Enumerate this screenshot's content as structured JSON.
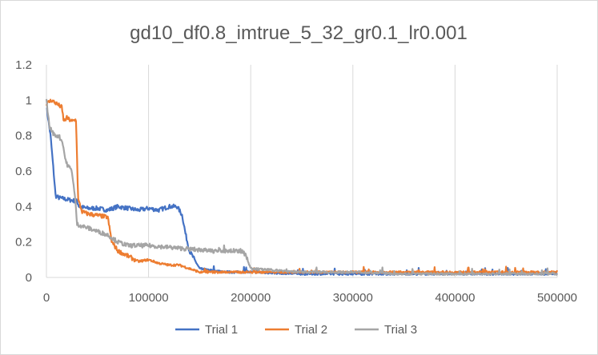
{
  "chart_data": {
    "type": "line",
    "title": "gd10_df0.8_imtrue_5_32_gr0.1_lr0.001",
    "xlabel": "",
    "ylabel": "",
    "xlim": [
      0,
      500000
    ],
    "ylim": [
      0,
      1.2
    ],
    "x_ticks": [
      0,
      100000,
      200000,
      300000,
      400000,
      500000
    ],
    "y_ticks": [
      0,
      0.2,
      0.4,
      0.6,
      0.8,
      1,
      1.2
    ],
    "x_tick_labels": [
      "0",
      "100000",
      "200000",
      "300000",
      "400000",
      "500000"
    ],
    "y_tick_labels": [
      "0",
      "0.2",
      "0.4",
      "0.6",
      "0.8",
      "1",
      "1.2"
    ],
    "grid": "vertical",
    "legend_position": "bottom",
    "series": [
      {
        "name": "Trial 1",
        "color": "#4472C4",
        "x": [
          0,
          4000,
          7000,
          9000,
          12000,
          20000,
          30000,
          32000,
          40000,
          50000,
          60000,
          70000,
          80000,
          90000,
          100000,
          110000,
          120000,
          128000,
          133000,
          136000,
          140000,
          145000,
          150000,
          160000,
          180000,
          200000,
          250000,
          300000,
          350000,
          400000,
          450000,
          500000
        ],
        "y": [
          0.97,
          0.8,
          0.6,
          0.46,
          0.45,
          0.44,
          0.43,
          0.4,
          0.39,
          0.39,
          0.38,
          0.4,
          0.39,
          0.38,
          0.39,
          0.38,
          0.4,
          0.4,
          0.35,
          0.25,
          0.15,
          0.1,
          0.05,
          0.04,
          0.03,
          0.03,
          0.02,
          0.02,
          0.02,
          0.02,
          0.02,
          0.02
        ]
      },
      {
        "name": "Trial 2",
        "color": "#ED7D31",
        "x": [
          0,
          5000,
          10000,
          15000,
          17000,
          20000,
          25000,
          29000,
          31000,
          35000,
          40000,
          50000,
          60000,
          64000,
          70000,
          80000,
          90000,
          100000,
          110000,
          120000,
          130000,
          140000,
          150000,
          160000,
          200000,
          250000,
          300000,
          350000,
          400000,
          450000,
          500000
        ],
        "y": [
          0.98,
          1.0,
          0.98,
          0.96,
          0.88,
          0.9,
          0.88,
          0.89,
          0.44,
          0.37,
          0.36,
          0.35,
          0.34,
          0.2,
          0.15,
          0.12,
          0.09,
          0.1,
          0.08,
          0.07,
          0.07,
          0.05,
          0.03,
          0.03,
          0.03,
          0.03,
          0.03,
          0.03,
          0.03,
          0.03,
          0.03
        ]
      },
      {
        "name": "Trial 3",
        "color": "#A5A5A5",
        "x": [
          0,
          3000,
          8000,
          12000,
          16000,
          18000,
          20000,
          25000,
          28000,
          30000,
          40000,
          50000,
          60000,
          70000,
          80000,
          90000,
          100000,
          120000,
          140000,
          160000,
          180000,
          190000,
          195000,
          200000,
          250000,
          300000,
          350000,
          400000,
          450000,
          500000
        ],
        "y": [
          1.0,
          0.85,
          0.8,
          0.8,
          0.76,
          0.68,
          0.64,
          0.6,
          0.45,
          0.3,
          0.28,
          0.26,
          0.24,
          0.2,
          0.18,
          0.18,
          0.18,
          0.17,
          0.16,
          0.15,
          0.15,
          0.15,
          0.13,
          0.05,
          0.03,
          0.03,
          0.02,
          0.02,
          0.02,
          0.02
        ]
      }
    ]
  }
}
